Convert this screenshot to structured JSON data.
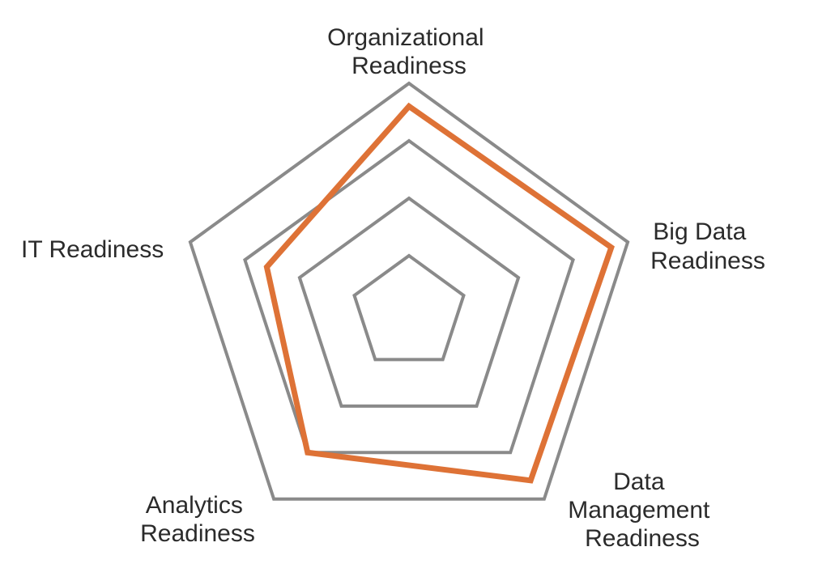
{
  "chart_data": {
    "type": "radar",
    "title": "",
    "axes": [
      {
        "key": "org",
        "label_lines": [
          "Organizational",
          "Readiness"
        ]
      },
      {
        "key": "bigdata",
        "label_lines": [
          "Big Data",
          "Readiness"
        ]
      },
      {
        "key": "datamgmt",
        "label_lines": [
          "Data",
          "Management",
          "Readiness"
        ]
      },
      {
        "key": "analytics",
        "label_lines": [
          "Analytics",
          "Readiness"
        ]
      },
      {
        "key": "it",
        "label_lines": [
          "IT Readiness"
        ]
      }
    ],
    "rings": [
      1,
      2,
      3,
      4
    ],
    "range": [
      0,
      4
    ],
    "series": [
      {
        "values": [
          3.6,
          3.7,
          3.6,
          3.0,
          2.6
        ]
      }
    ],
    "grid": true,
    "legend": "none",
    "colors": {
      "grid": "#8a8a8a",
      "series": "#de7236",
      "text": "#2b2b2b"
    }
  }
}
